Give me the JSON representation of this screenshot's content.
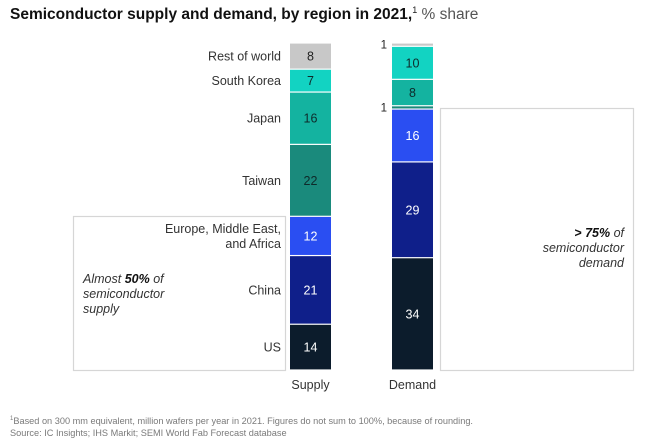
{
  "title": {
    "main": "Semiconductor supply and demand, by region in 2021,",
    "footnote_marker": "1",
    "unit": " % share"
  },
  "chart_data": {
    "type": "bar",
    "subtype": "stacked-100",
    "title": "Semiconductor supply and demand, by region in 2021",
    "unit": "% share",
    "categories": [
      "Supply",
      "Demand"
    ],
    "regions": [
      "US",
      "China",
      "Europe, Middle East, and Africa",
      "Taiwan",
      "Japan",
      "South Korea",
      "Rest of world"
    ],
    "region_labels": [
      {
        "lines": [
          "US"
        ]
      },
      {
        "lines": [
          "China"
        ]
      },
      {
        "lines": [
          "Europe, Middle East,",
          "and Africa"
        ]
      },
      {
        "lines": [
          "Taiwan"
        ]
      },
      {
        "lines": [
          "Japan"
        ]
      },
      {
        "lines": [
          "South Korea"
        ]
      },
      {
        "lines": [
          "Rest of world"
        ]
      }
    ],
    "colors": [
      "#0c1c2c",
      "#0f1f8a",
      "#2a4ef2",
      "#1a8a7c",
      "#14b3a0",
      "#12d3c2",
      "#c8c8c8"
    ],
    "label_colors": [
      "#ffffff",
      "#ffffff",
      "#ffffff",
      "#0e2a2a",
      "#0e2a2a",
      "#0e2a2a",
      "#222222"
    ],
    "series": [
      {
        "name": "Supply",
        "values": [
          14,
          21,
          12,
          22,
          16,
          7,
          8
        ]
      },
      {
        "name": "Demand",
        "values": [
          34,
          29,
          16,
          1,
          8,
          10,
          1
        ]
      }
    ],
    "xlabel": "",
    "ylabel": "",
    "legend": "none"
  },
  "annotations": {
    "supply_prefix": "Almost ",
    "supply_bold": "50%",
    "supply_suffix": " of",
    "supply_line2": "semiconductor",
    "supply_line3": "supply",
    "demand_bold": "> 75%",
    "demand_suffix": " of",
    "demand_line2": "semiconductor",
    "demand_line3": "demand"
  },
  "footnote": {
    "marker": "1",
    "line1": "Based on 300 mm equivalent, million wafers per year in 2021. Figures do not sum to 100%, because of rounding.",
    "line2": "Source: IC Insights; IHS Markit; SEMI World Fab Forecast database"
  }
}
